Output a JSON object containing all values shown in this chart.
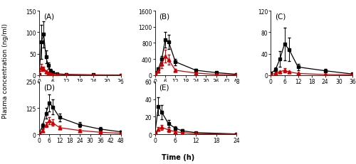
{
  "panels": [
    {
      "label": "(A)",
      "xlim": [
        0,
        36
      ],
      "ylim": [
        0,
        150
      ],
      "xticks": [
        0,
        6,
        12,
        18,
        24,
        30,
        36
      ],
      "yticks": [
        0,
        50,
        100,
        150
      ],
      "black": {
        "x": [
          0,
          1,
          2,
          3,
          4,
          5,
          6,
          8,
          12,
          24,
          36
        ],
        "y": [
          2,
          78,
          95,
          42,
          22,
          10,
          6,
          3,
          1.5,
          0.5,
          0.2
        ],
        "err": [
          1,
          40,
          30,
          15,
          8,
          4,
          2,
          1,
          0.5,
          0.2,
          0.1
        ]
      },
      "red": {
        "x": [
          0,
          1,
          2,
          3,
          4,
          5,
          6,
          8,
          12,
          24,
          36
        ],
        "y": [
          1,
          18,
          15,
          8,
          5,
          3,
          2,
          1,
          0.5,
          0.2,
          0.1
        ],
        "err": [
          0.5,
          8,
          5,
          3,
          2,
          1,
          0.8,
          0.5,
          0.2,
          0.1,
          0.05
        ]
      }
    },
    {
      "label": "(B)",
      "xlim": [
        0,
        48
      ],
      "ylim": [
        0,
        1600
      ],
      "xticks": [
        0,
        6,
        12,
        18,
        24,
        30,
        36,
        42,
        48
      ],
      "yticks": [
        0,
        400,
        800,
        1200,
        1600
      ],
      "black": {
        "x": [
          0,
          2,
          4,
          6,
          8,
          12,
          24,
          36,
          48
        ],
        "y": [
          50,
          150,
          400,
          880,
          830,
          330,
          120,
          60,
          20
        ],
        "err": [
          15,
          40,
          80,
          200,
          180,
          80,
          30,
          15,
          5
        ]
      },
      "red": {
        "x": [
          0,
          2,
          4,
          6,
          8,
          12,
          24,
          36,
          48
        ],
        "y": [
          30,
          100,
          280,
          470,
          380,
          120,
          50,
          15,
          5
        ],
        "err": [
          10,
          30,
          100,
          160,
          120,
          40,
          15,
          5,
          2
        ]
      }
    },
    {
      "label": "(C)",
      "xlim": [
        0,
        36
      ],
      "ylim": [
        0,
        120
      ],
      "xticks": [
        0,
        6,
        12,
        18,
        24,
        30,
        36
      ],
      "yticks": [
        0,
        40,
        80,
        120
      ],
      "black": {
        "x": [
          0,
          2,
          4,
          6,
          8,
          12,
          24,
          36
        ],
        "y": [
          3,
          10,
          30,
          58,
          48,
          15,
          8,
          2
        ],
        "err": [
          1,
          4,
          15,
          30,
          22,
          6,
          3,
          1
        ]
      },
      "red": {
        "x": [
          0,
          2,
          4,
          6,
          8,
          12,
          24,
          36
        ],
        "y": [
          1,
          3,
          6,
          9,
          6,
          3,
          1,
          0.5
        ],
        "err": [
          0.5,
          1,
          2,
          4,
          2,
          1,
          0.5,
          0.2
        ]
      }
    },
    {
      "label": "(D)",
      "xlim": [
        0,
        48
      ],
      "ylim": [
        0,
        250
      ],
      "xticks": [
        0,
        6,
        12,
        18,
        24,
        30,
        36,
        42,
        48
      ],
      "yticks": [
        0,
        125,
        250
      ],
      "black": {
        "x": [
          0,
          2,
          4,
          6,
          8,
          12,
          24,
          36,
          48
        ],
        "y": [
          5,
          40,
          100,
          150,
          130,
          80,
          45,
          25,
          12
        ],
        "err": [
          2,
          12,
          25,
          40,
          35,
          20,
          12,
          8,
          4
        ]
      },
      "red": {
        "x": [
          0,
          2,
          4,
          6,
          8,
          12,
          24,
          36,
          48
        ],
        "y": [
          3,
          18,
          45,
          65,
          55,
          32,
          18,
          10,
          5
        ],
        "err": [
          1,
          6,
          12,
          18,
          15,
          8,
          5,
          3,
          2
        ]
      }
    },
    {
      "label": "(E)",
      "xlim": [
        0,
        24
      ],
      "ylim": [
        0,
        60
      ],
      "xticks": [
        0,
        6,
        12,
        18,
        24
      ],
      "yticks": [
        0,
        20,
        40,
        60
      ],
      "black": {
        "x": [
          0,
          1,
          2,
          4,
          6,
          8,
          12,
          24
        ],
        "y": [
          2,
          32,
          25,
          12,
          7,
          4,
          2,
          0.5
        ],
        "err": [
          1,
          10,
          8,
          4,
          2,
          1.5,
          0.8,
          0.2
        ]
      },
      "red": {
        "x": [
          0,
          1,
          2,
          4,
          6,
          8,
          12,
          24
        ],
        "y": [
          1,
          6,
          8,
          5,
          3,
          2,
          0.8,
          0.3
        ],
        "err": [
          0.4,
          2,
          3,
          2,
          1,
          0.8,
          0.3,
          0.1
        ]
      }
    }
  ],
  "ylabel": "Plasma concentration (ng/ml)",
  "xlabel": "Time (h)",
  "black_color": "#000000",
  "red_color": "#cc0000",
  "marker_black": "s",
  "marker_red": "^",
  "markersize": 3.5,
  "linewidth": 0.9,
  "capsize": 1.5,
  "elinewidth": 0.7,
  "tick_fontsize": 5.5,
  "label_fontsize": 6.5,
  "panel_label_fontsize": 7.5
}
